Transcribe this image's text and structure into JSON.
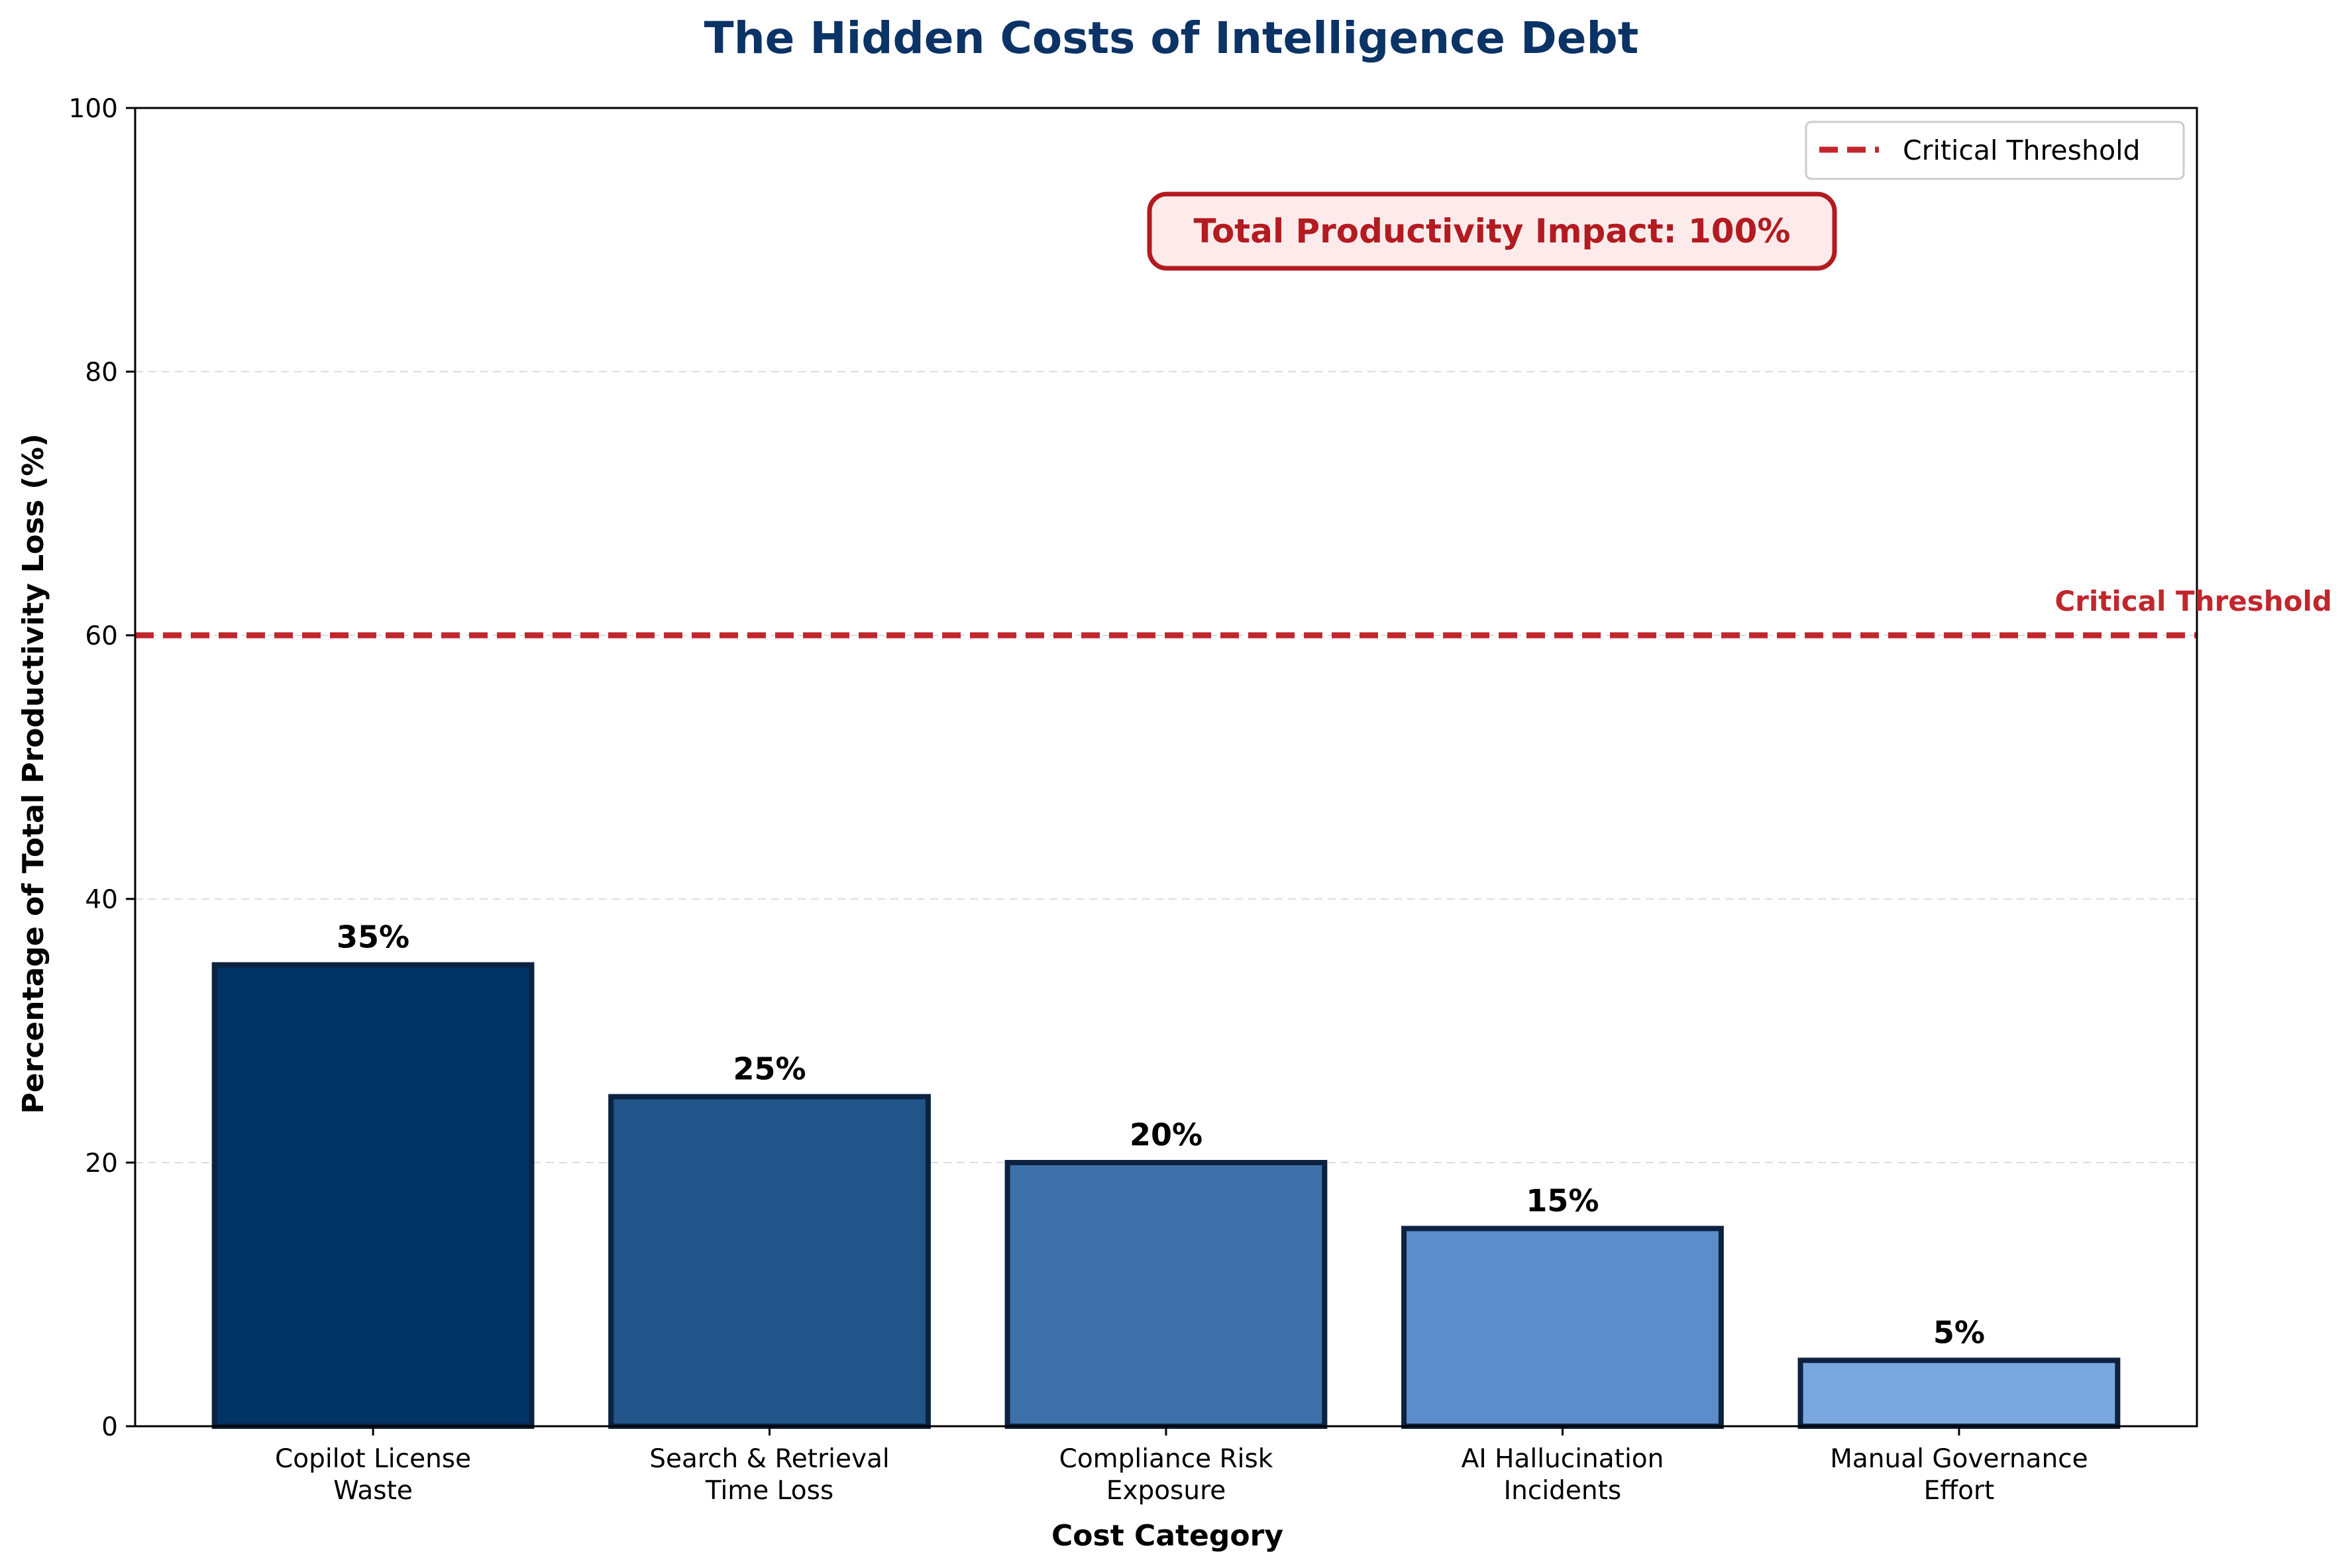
{
  "chart_data": {
    "type": "bar",
    "title": "The Hidden Costs of Intelligence Debt",
    "xlabel": "Cost Category",
    "ylabel": "Percentage of Total Productivity Loss (%)",
    "ylim": [
      0,
      100
    ],
    "yticks": [
      0,
      20,
      40,
      60,
      80,
      100
    ],
    "grid": "horizontal dashed",
    "categories": [
      [
        "Copilot License",
        "Waste"
      ],
      [
        "Search & Retrieval",
        "Time Loss"
      ],
      [
        "Compliance Risk",
        "Exposure"
      ],
      [
        "AI Hallucination",
        "Incidents"
      ],
      [
        "Manual Governance",
        "Effort"
      ]
    ],
    "values": [
      35,
      25,
      20,
      15,
      5
    ],
    "value_labels": [
      "35%",
      "25%",
      "20%",
      "15%",
      "5%"
    ],
    "bar_colors": [
      "#003366",
      "#215489",
      "#3d70a8",
      "#5d8cca",
      "#7aa7dd"
    ],
    "bar_edge_color": "#0c2240",
    "threshold": {
      "value": 60,
      "label": "Critical Threshold",
      "color": "#c0272d",
      "style": "dashed"
    },
    "legend": {
      "position": "top-right",
      "entries": [
        "Critical Threshold"
      ]
    },
    "annotation": {
      "text": "Total Productivity Impact: 100%",
      "color": "#b31b21",
      "background": "#fdebeb"
    }
  }
}
